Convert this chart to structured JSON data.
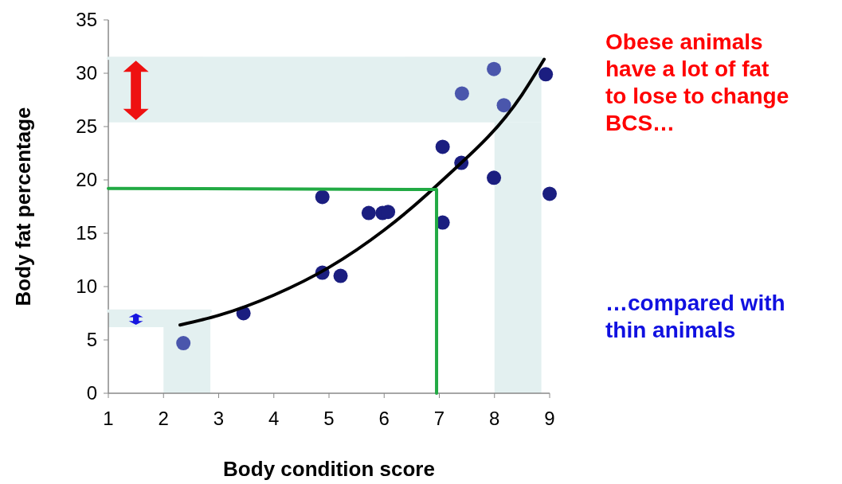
{
  "chart_data": {
    "type": "scatter",
    "xlabel": "Body condition score",
    "ylabel": "Body fat percentage",
    "xlim": [
      1,
      9
    ],
    "xticks": [
      1,
      2,
      3,
      4,
      5,
      6,
      7,
      8,
      9
    ],
    "ylim": [
      0,
      35
    ],
    "yticks": [
      0,
      5,
      10,
      15,
      20,
      25,
      30,
      35
    ],
    "series": [
      {
        "type": "line",
        "x": [
          1,
          8.85
        ],
        "values": [
          31.4,
          31.4
        ],
        "lower": [
          25.4,
          25.4
        ],
        "upper": [
          31.4,
          31.4
        ],
        "color": "#e3f0f0"
      },
      {
        "type": "area",
        "x": [
          8,
          8.85
        ],
        "values": [
          25.4,
          25.4
        ],
        "color": "#e3f0f0"
      },
      {
        "type": "line",
        "x": [
          1,
          2.85
        ],
        "values": [
          7.7,
          7.7
        ],
        "lower": [
          6.2,
          6.2
        ],
        "upper": [
          7.7,
          7.7
        ],
        "color": "#e3f0f0"
      },
      {
        "type": "area",
        "x": [
          2,
          2.85
        ],
        "values": [
          6.2,
          6.2
        ],
        "color": "#e3f0f0"
      },
      {
        "marker": "circle",
        "x": [
          2.36,
          3.45,
          4.88,
          4.88,
          5.21,
          5.72,
          5.97,
          6.07,
          7.06,
          7.06,
          7.4,
          7.41,
          7.99,
          7.99,
          8.17,
          8.93,
          9.0
        ],
        "values": [
          4.7,
          7.5,
          18.4,
          11.3,
          11.0,
          16.9,
          16.9,
          17.0,
          23.1,
          16.0,
          21.6,
          28.1,
          30.4,
          20.2,
          27.0,
          29.9,
          18.7
        ],
        "colors": [
          "#4a56ac",
          "#1b1e80",
          "#1b1e80",
          "#1b1e80",
          "#1b1e80",
          "#1b1e80",
          "#1b1e80",
          "#1b1e80",
          "#1b1e80",
          "#1b1e80",
          "#1b1e80",
          "#4a56ac",
          "#4a56ac",
          "#1b1e80",
          "#4a56ac",
          "#1b1e80",
          "#1b1e80"
        ]
      },
      {
        "type": "line",
        "x": [
          2.3,
          3,
          4,
          5,
          6,
          7,
          8.5,
          8.9
        ],
        "values": [
          6.4,
          7.3,
          9.2,
          11.8,
          15.3,
          19.7,
          28.0,
          31.3
        ],
        "color": "#000000"
      },
      {
        "type": "line",
        "x": [
          1,
          6.95,
          6.95
        ],
        "values": [
          19.2,
          19.1,
          0
        ],
        "color": "#22aa44"
      }
    ],
    "annotations": [
      "Obese animals have a lot of fat to lose to change BCS…",
      "…compared with thin animals"
    ]
  }
}
